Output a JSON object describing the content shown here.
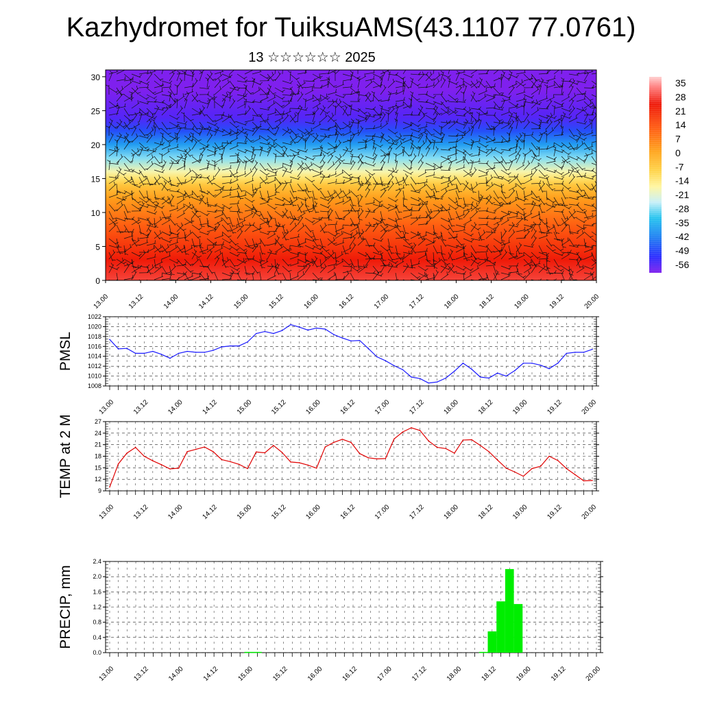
{
  "header": {
    "title": "Kazhydromet for TuiksuAMS(43.1107 77.0761)",
    "subtitle": "13 ☆☆☆☆☆☆ 2025"
  },
  "colors": {
    "pmsl_line": "#1a1aff",
    "temp_line": "#e00000",
    "precip_bar": "#00ee00",
    "grid": "#222222"
  },
  "chart_data": [
    {
      "type": "heatmap",
      "name": "upper-air section",
      "x_ticks": [
        "13.00",
        "13.12",
        "14.00",
        "14.12",
        "15.00",
        "15.12",
        "16.00",
        "16.12",
        "17.00",
        "17.12",
        "18.00",
        "18.12",
        "19.00",
        "19.12",
        "20.00"
      ],
      "y_ticks": [
        0,
        5,
        10,
        15,
        20,
        25,
        30
      ],
      "ylim": [
        0,
        31
      ],
      "colorbar_labels": [
        "35",
        "28",
        "21",
        "14",
        "7",
        "0",
        "-7",
        "-14",
        "-21",
        "-28",
        "-35",
        "-42",
        "-49",
        "-56"
      ],
      "colorbar_range": [
        -60,
        38
      ],
      "profile": [
        [
          0,
          28
        ],
        [
          3,
          24
        ],
        [
          5,
          19
        ],
        [
          8,
          12
        ],
        [
          10,
          7
        ],
        [
          12,
          2
        ],
        [
          14,
          -6
        ],
        [
          15,
          -12
        ],
        [
          16,
          -18
        ],
        [
          18,
          -28
        ],
        [
          20,
          -38
        ],
        [
          22,
          -48
        ],
        [
          24,
          -56
        ],
        [
          26,
          -58
        ],
        [
          28,
          -60
        ],
        [
          31,
          -62
        ]
      ],
      "overlay": "wind barbs"
    },
    {
      "type": "line",
      "name": "pmsl",
      "ylabel": "PMSL",
      "y_ticks": [
        1008,
        1010,
        1012,
        1014,
        1016,
        1018,
        1020,
        1022
      ],
      "ylim": [
        1008,
        1022
      ],
      "x_ticks": [
        "13.00",
        "13.12",
        "14.00",
        "14.12",
        "15.00",
        "15.12",
        "16.00",
        "16.12",
        "17.00",
        "17.12",
        "18.00",
        "18.12",
        "19.00",
        "19.12",
        "20.00"
      ],
      "x": [
        0,
        1,
        2,
        3,
        4,
        5,
        6,
        7,
        8,
        9,
        10,
        11,
        12,
        13,
        14,
        15,
        16,
        17,
        18,
        19,
        20,
        21,
        22,
        23,
        24,
        25,
        26,
        27,
        28,
        29,
        30,
        31,
        32,
        33,
        34,
        35,
        36,
        37,
        38,
        39,
        40,
        41,
        42,
        43,
        44,
        45,
        46,
        47,
        48,
        49,
        50,
        51,
        52,
        53,
        54,
        55,
        56
      ],
      "values": [
        1017.4,
        1015.5,
        1015.6,
        1014.6,
        1014.6,
        1015.0,
        1014.4,
        1013.6,
        1014.6,
        1015.0,
        1014.8,
        1014.8,
        1015.2,
        1015.9,
        1016.1,
        1016.1,
        1016.9,
        1018.6,
        1019.0,
        1018.6,
        1019.2,
        1020.4,
        1019.9,
        1019.3,
        1019.7,
        1019.5,
        1018.4,
        1017.7,
        1017.1,
        1017.2,
        1015.6,
        1013.9,
        1013.1,
        1012.1,
        1011.3,
        1009.8,
        1009.5,
        1008.6,
        1008.8,
        1009.6,
        1011.0,
        1012.6,
        1011.4,
        1009.8,
        1009.6,
        1010.6,
        1010.0,
        1011.1,
        1012.6,
        1012.6,
        1012.2,
        1011.5,
        1012.6,
        1014.6,
        1014.8,
        1014.8,
        1015.4
      ]
    },
    {
      "type": "line",
      "name": "temperature",
      "ylabel": "TEMP at 2 M",
      "y_ticks": [
        9,
        12,
        15,
        18,
        21,
        24,
        27
      ],
      "ylim": [
        9,
        27
      ],
      "x_ticks": [
        "13.00",
        "13.12",
        "14.00",
        "14.12",
        "15.00",
        "15.12",
        "16.00",
        "16.12",
        "17.00",
        "17.12",
        "18.00",
        "18.12",
        "19.00",
        "19.12",
        "20.00"
      ],
      "x": [
        0,
        1,
        2,
        3,
        4,
        5,
        6,
        7,
        8,
        9,
        10,
        11,
        12,
        13,
        14,
        15,
        16,
        17,
        18,
        19,
        20,
        21,
        22,
        23,
        24,
        25,
        26,
        27,
        28,
        29,
        30,
        31,
        32,
        33,
        34,
        35,
        36,
        37,
        38,
        39,
        40,
        41,
        42,
        43,
        44,
        45,
        46,
        47,
        48,
        49,
        50,
        51,
        52,
        53,
        54,
        55,
        56
      ],
      "values": [
        10.0,
        16.0,
        18.8,
        20.3,
        18.0,
        16.8,
        15.8,
        14.7,
        14.9,
        19.2,
        19.8,
        20.4,
        19.2,
        17.1,
        16.6,
        15.9,
        14.8,
        19.1,
        18.9,
        20.8,
        19.0,
        16.5,
        16.3,
        15.7,
        14.9,
        20.4,
        21.6,
        22.4,
        21.6,
        18.7,
        17.6,
        17.3,
        17.4,
        22.5,
        24.3,
        25.4,
        24.7,
        22.0,
        20.3,
        20.0,
        18.8,
        22.2,
        22.3,
        20.8,
        19.2,
        17.0,
        14.9,
        13.9,
        12.8,
        14.8,
        15.4,
        18.0,
        16.9,
        14.8,
        13.2,
        11.6,
        11.7
      ]
    },
    {
      "type": "bar",
      "name": "precipitation",
      "ylabel": "PRECIP, mm",
      "y_ticks": [
        "0.0",
        "0.4",
        "0.8",
        "1.2",
        "1.6",
        "2.0",
        "2.4"
      ],
      "ylim": [
        0,
        2.4
      ],
      "x_ticks": [
        "13.00",
        "13.12",
        "14.00",
        "14.12",
        "15.00",
        "15.12",
        "16.00",
        "16.12",
        "17.00",
        "17.12",
        "18.00",
        "18.12",
        "19.00",
        "19.12",
        "20.00"
      ],
      "x": [
        16,
        17,
        43,
        44,
        45,
        46,
        47
      ],
      "values": [
        0.02,
        0.02,
        0.02,
        0.56,
        1.35,
        2.2,
        1.28
      ]
    }
  ]
}
